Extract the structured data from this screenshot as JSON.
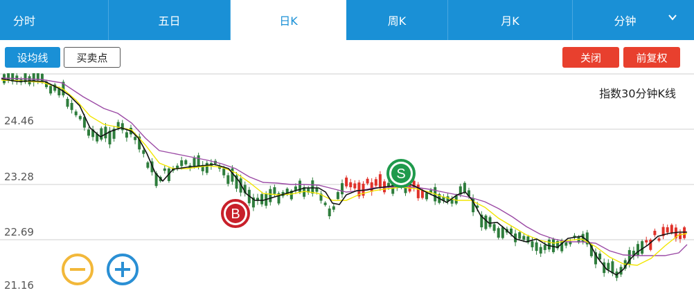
{
  "tabs": [
    {
      "label": "分时",
      "active": false
    },
    {
      "label": "五日",
      "active": false
    },
    {
      "label": "日K",
      "active": true
    },
    {
      "label": "周K",
      "active": false
    },
    {
      "label": "月K",
      "active": false
    },
    {
      "label": "分钟",
      "active": false,
      "has_dropdown": true
    }
  ],
  "toolbar": {
    "set_ma_label": "设均线",
    "buy_sell_label": "买卖点",
    "close_label": "关闭",
    "adjust_label": "前复权"
  },
  "chart": {
    "title": "指数30分钟K线",
    "y_labels": [
      "24.46",
      "23.28",
      "22.69",
      "21.16"
    ],
    "buy_marker": "B",
    "sell_marker": "S"
  },
  "colors": {
    "tab_blue": "#1a90d6",
    "button_red": "#e8402e",
    "candle_up": "#e0322a",
    "candle_down": "#2e7d3c",
    "ma_black": "#111111",
    "ma_yellow": "#f2e600",
    "ma_purple": "#9b4aa5",
    "buy_marker": "#c8202a",
    "sell_marker": "#1f9a4c",
    "zoom_out": "#f2b83a",
    "zoom_in": "#2a8fd4"
  },
  "icons": {
    "dropdown": "chevron-down-icon",
    "zoom_out": "minus-circle-icon",
    "zoom_in": "plus-circle-icon"
  }
}
